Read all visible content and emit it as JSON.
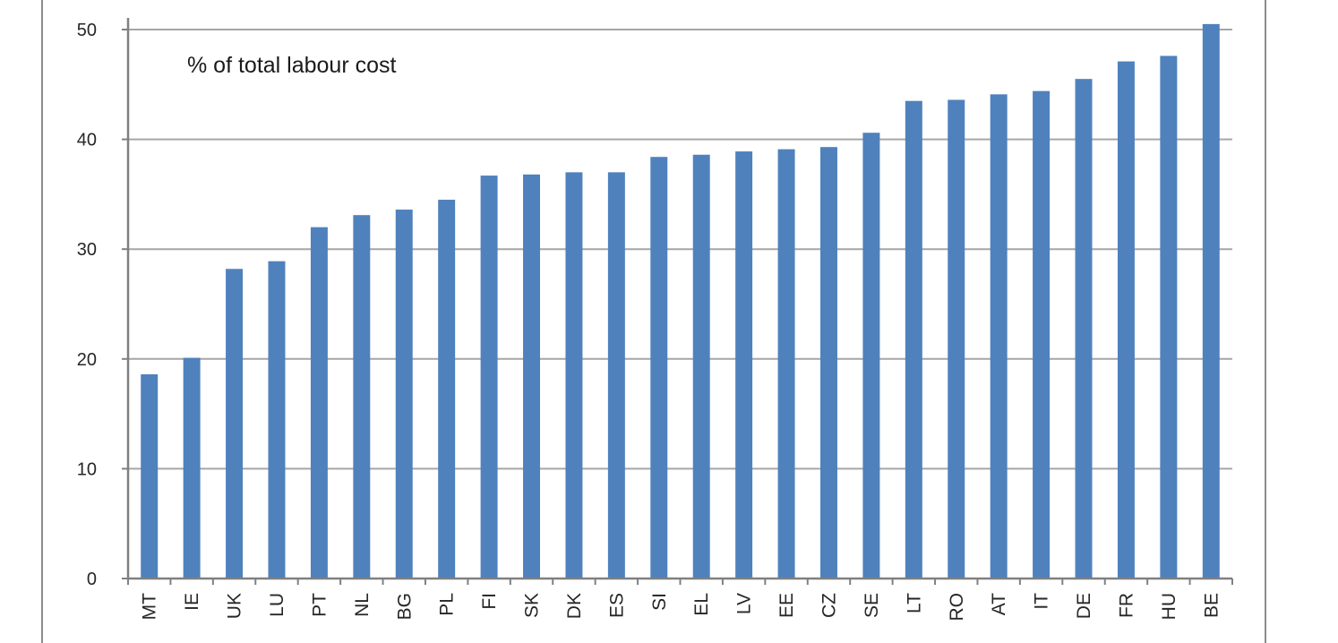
{
  "chart_data": {
    "type": "bar",
    "title": "% of total labour cost",
    "xlabel": "",
    "ylabel": "",
    "categories": [
      "MT",
      "IE",
      "UK",
      "LU",
      "PT",
      "NL",
      "BG",
      "PL",
      "FI",
      "SK",
      "DK",
      "ES",
      "SI",
      "EL",
      "LV",
      "EE",
      "CZ",
      "SE",
      "LT",
      "RO",
      "AT",
      "IT",
      "DE",
      "FR",
      "HU",
      "BE"
    ],
    "values": [
      18.6,
      20.1,
      28.2,
      28.9,
      32.0,
      33.1,
      33.6,
      34.5,
      36.7,
      36.8,
      37.0,
      37.0,
      38.4,
      38.6,
      38.9,
      39.1,
      39.3,
      40.6,
      43.5,
      43.6,
      44.1,
      44.4,
      45.5,
      47.1,
      47.6,
      50.5
    ],
    "ylim": [
      0,
      50
    ],
    "yticks": [
      "0",
      "10",
      "20",
      "30",
      "40",
      "50"
    ],
    "grid": true,
    "bar_color": "#4f81bd",
    "grid_color": "#a6a6a6",
    "axis_color": "#808080"
  }
}
